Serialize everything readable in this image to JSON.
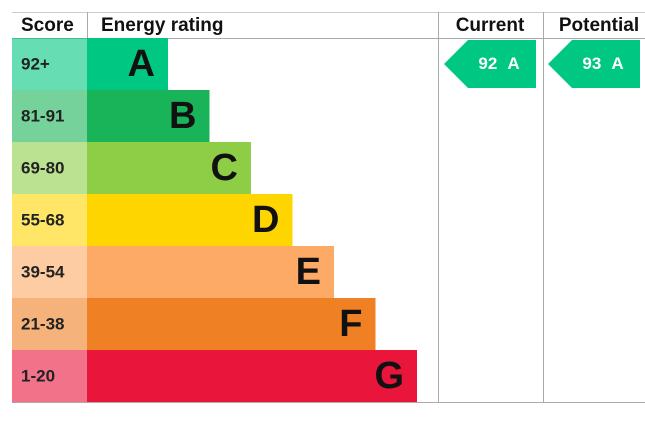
{
  "headers": {
    "score": "Score",
    "rating": "Energy rating",
    "current": "Current",
    "potential": "Potential"
  },
  "bands": [
    {
      "score": "92+",
      "letter": "A",
      "color": "#00c781"
    },
    {
      "score": "81-91",
      "letter": "B",
      "color": "#19b459"
    },
    {
      "score": "69-80",
      "letter": "C",
      "color": "#8dce46"
    },
    {
      "score": "55-68",
      "letter": "D",
      "color": "#ffd500"
    },
    {
      "score": "39-54",
      "letter": "E",
      "color": "#fcaa65"
    },
    {
      "score": "21-38",
      "letter": "F",
      "color": "#ef8023"
    },
    {
      "score": "1-20",
      "letter": "G",
      "color": "#e9153b"
    }
  ],
  "current": {
    "value": 92,
    "rating": "A"
  },
  "potential": {
    "value": 93,
    "rating": "A"
  }
}
